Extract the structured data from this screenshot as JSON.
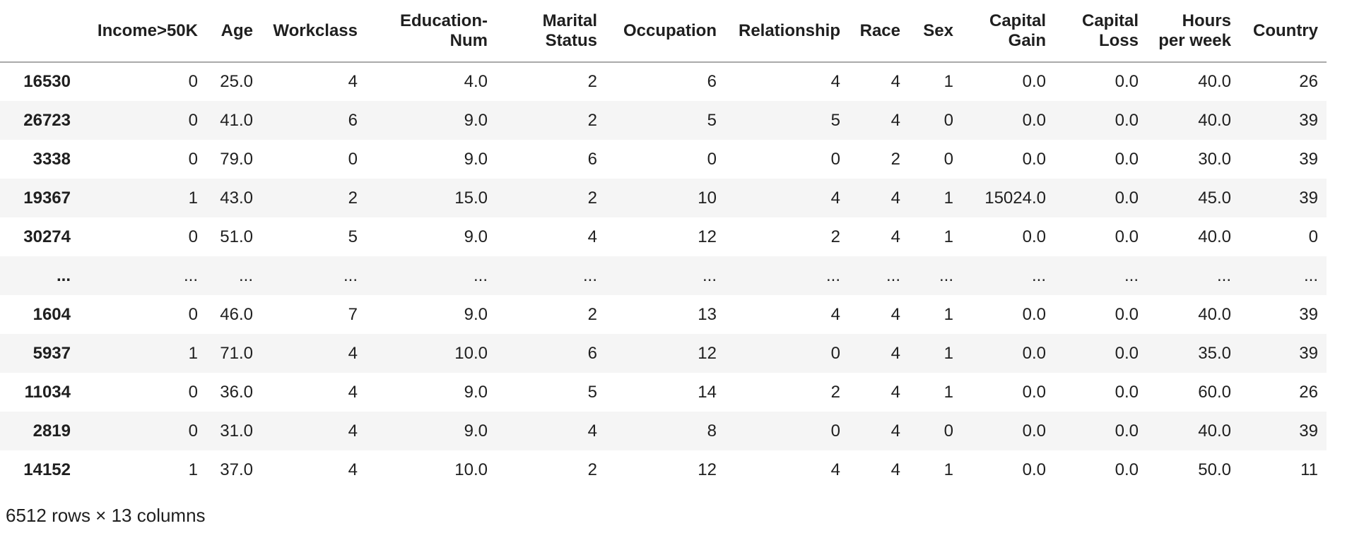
{
  "table": {
    "index_header": "",
    "columns": [
      "Income>50K",
      "Age",
      "Workclass",
      "Education-Num",
      "Marital Status",
      "Occupation",
      "Relationship",
      "Race",
      "Sex",
      "Capital Gain",
      "Capital Loss",
      "Hours per week",
      "Country"
    ],
    "rows": [
      {
        "index": "16530",
        "values": [
          "0",
          "25.0",
          "4",
          "4.0",
          "2",
          "6",
          "4",
          "4",
          "1",
          "0.0",
          "0.0",
          "40.0",
          "26"
        ]
      },
      {
        "index": "26723",
        "values": [
          "0",
          "41.0",
          "6",
          "9.0",
          "2",
          "5",
          "5",
          "4",
          "0",
          "0.0",
          "0.0",
          "40.0",
          "39"
        ]
      },
      {
        "index": "3338",
        "values": [
          "0",
          "79.0",
          "0",
          "9.0",
          "6",
          "0",
          "0",
          "2",
          "0",
          "0.0",
          "0.0",
          "30.0",
          "39"
        ]
      },
      {
        "index": "19367",
        "values": [
          "1",
          "43.0",
          "2",
          "15.0",
          "2",
          "10",
          "4",
          "4",
          "1",
          "15024.0",
          "0.0",
          "45.0",
          "39"
        ]
      },
      {
        "index": "30274",
        "values": [
          "0",
          "51.0",
          "5",
          "9.0",
          "4",
          "12",
          "2",
          "4",
          "1",
          "0.0",
          "0.0",
          "40.0",
          "0"
        ]
      },
      {
        "index": "...",
        "values": [
          "...",
          "...",
          "...",
          "...",
          "...",
          "...",
          "...",
          "...",
          "...",
          "...",
          "...",
          "...",
          "..."
        ]
      },
      {
        "index": "1604",
        "values": [
          "0",
          "46.0",
          "7",
          "9.0",
          "2",
          "13",
          "4",
          "4",
          "1",
          "0.0",
          "0.0",
          "40.0",
          "39"
        ]
      },
      {
        "index": "5937",
        "values": [
          "1",
          "71.0",
          "4",
          "10.0",
          "6",
          "12",
          "0",
          "4",
          "1",
          "0.0",
          "0.0",
          "35.0",
          "39"
        ]
      },
      {
        "index": "11034",
        "values": [
          "0",
          "36.0",
          "4",
          "9.0",
          "5",
          "14",
          "2",
          "4",
          "1",
          "0.0",
          "0.0",
          "60.0",
          "26"
        ]
      },
      {
        "index": "2819",
        "values": [
          "0",
          "31.0",
          "4",
          "9.0",
          "4",
          "8",
          "0",
          "4",
          "0",
          "0.0",
          "0.0",
          "40.0",
          "39"
        ]
      },
      {
        "index": "14152",
        "values": [
          "1",
          "37.0",
          "4",
          "10.0",
          "2",
          "12",
          "4",
          "4",
          "1",
          "0.0",
          "0.0",
          "50.0",
          "11"
        ]
      }
    ],
    "footer": "6512 rows × 13 columns"
  }
}
